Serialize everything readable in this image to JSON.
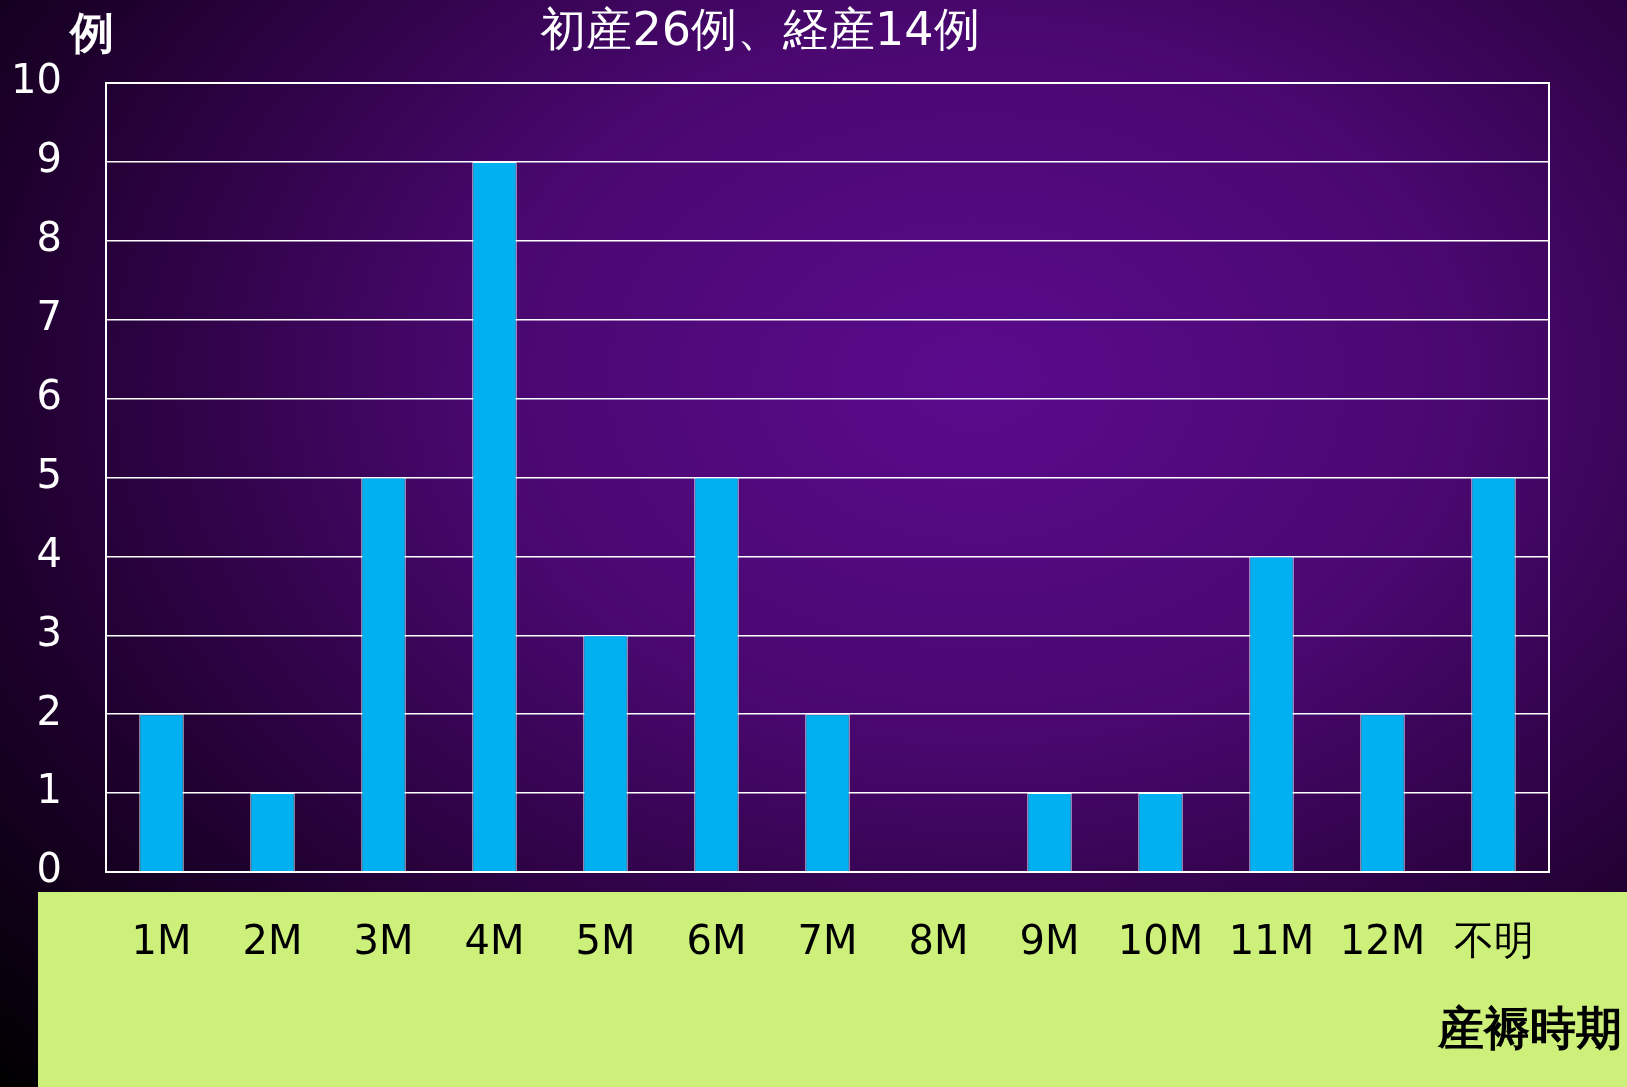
{
  "chart_data": {
    "type": "bar",
    "title": "初産26例、経産14例",
    "xlabel": "産褥時期",
    "ylabel": "例",
    "categories": [
      "1M",
      "2M",
      "3M",
      "4M",
      "5M",
      "6M",
      "7M",
      "8M",
      "9M",
      "10M",
      "11M",
      "12M",
      "不明"
    ],
    "values": [
      2,
      1,
      5,
      9,
      3,
      5,
      2,
      0,
      1,
      1,
      4,
      2,
      5
    ],
    "color": "#00b0f0",
    "ylim": [
      0,
      10
    ],
    "yticks": [
      0,
      1,
      2,
      3,
      4,
      5,
      6,
      7,
      8,
      9,
      10
    ],
    "grid": "y",
    "legend": false
  }
}
